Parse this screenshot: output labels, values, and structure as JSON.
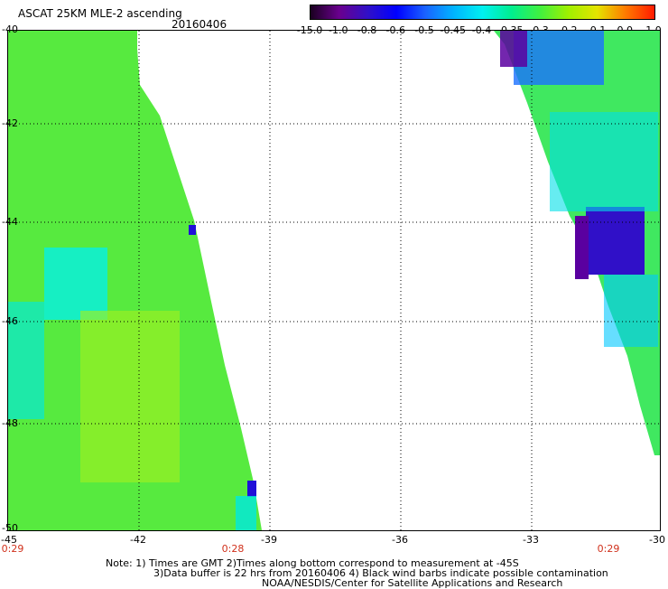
{
  "header": {
    "title": "ASCAT 25KM MLE-2 ascending",
    "date": "20160406"
  },
  "colorbar": {
    "labels": [
      "-15.0",
      "-1.0",
      "-0.8",
      "-0.6",
      "-0.5",
      "-0.45",
      "-0.4",
      "-0.35",
      "-0.3",
      "-0.2",
      "-0.1",
      "0.0",
      "1.0"
    ],
    "colors": [
      "#1a0020",
      "#6a008e",
      "#3010c8",
      "#0000ff",
      "#1a62ff",
      "#00b4ff",
      "#00f0f0",
      "#00ee90",
      "#40f040",
      "#a0f000",
      "#e4e400",
      "#ff7a00",
      "#ff1a00"
    ]
  },
  "map": {
    "lat_ticks": [
      "-40",
      "-42",
      "-44",
      "-46",
      "-48",
      "-50"
    ],
    "lon_ticks": [
      "-45",
      "-42",
      "-39",
      "-36",
      "-33",
      "-30"
    ],
    "times": [
      "0:29",
      "0:28",
      "0:29"
    ]
  },
  "footer": {
    "line1": "Note: 1) Times are GMT 2)Times along bottom correspond to measurement at -45S",
    "line2": "3)Data buffer is 22 hrs from 20160406 4) Black wind barbs indicate possible contamination",
    "line3": "NOAA/NESDIS/Center for Satellite Applications and Research"
  }
}
